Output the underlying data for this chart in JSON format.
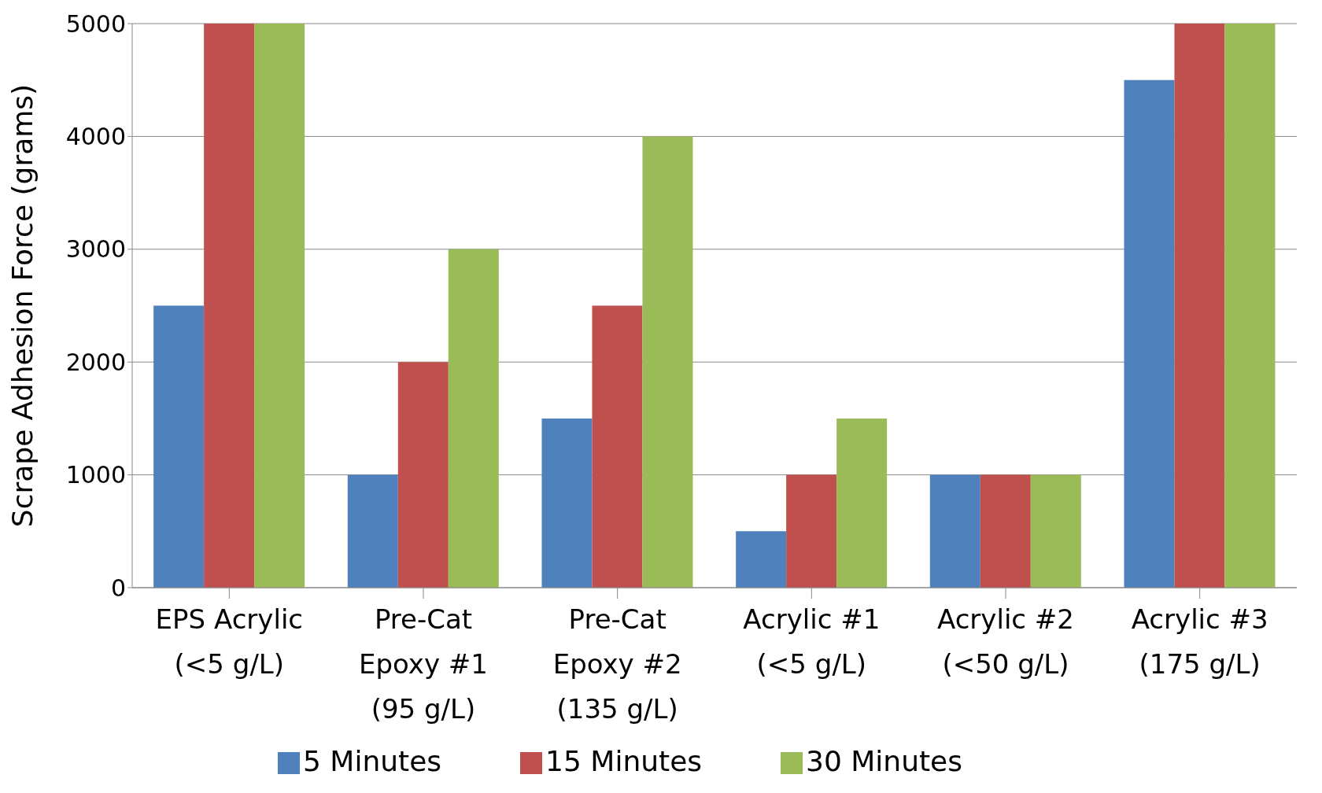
{
  "chart_data": {
    "type": "bar",
    "ylabel": "Scrape Adhesion Force (grams)",
    "categories": [
      "EPS Acrylic\n(<5 g/L)",
      "Pre-Cat\nEpoxy #1\n(95 g/L)",
      "Pre-Cat\nEpoxy #2\n(135 g/L)",
      "Acrylic #1\n(<5 g/L)",
      "Acrylic #2\n(<50 g/L)",
      "Acrylic #3\n(175 g/L)"
    ],
    "series": [
      {
        "name": "5 Minutes",
        "color": "#4f81bd",
        "values": [
          2500,
          1000,
          1500,
          500,
          1000,
          4500
        ]
      },
      {
        "name": "15 Minutes",
        "color": "#c0504d",
        "values": [
          5000,
          2000,
          2500,
          1000,
          1000,
          5000
        ]
      },
      {
        "name": "30 Minutes",
        "color": "#9bbb59",
        "values": [
          5000,
          3000,
          4000,
          1500,
          1000,
          5000
        ]
      }
    ],
    "ylim": [
      0,
      5000
    ],
    "yticks": [
      0,
      1000,
      2000,
      3000,
      4000,
      5000
    ],
    "grid": "y",
    "legend": "bottom"
  }
}
